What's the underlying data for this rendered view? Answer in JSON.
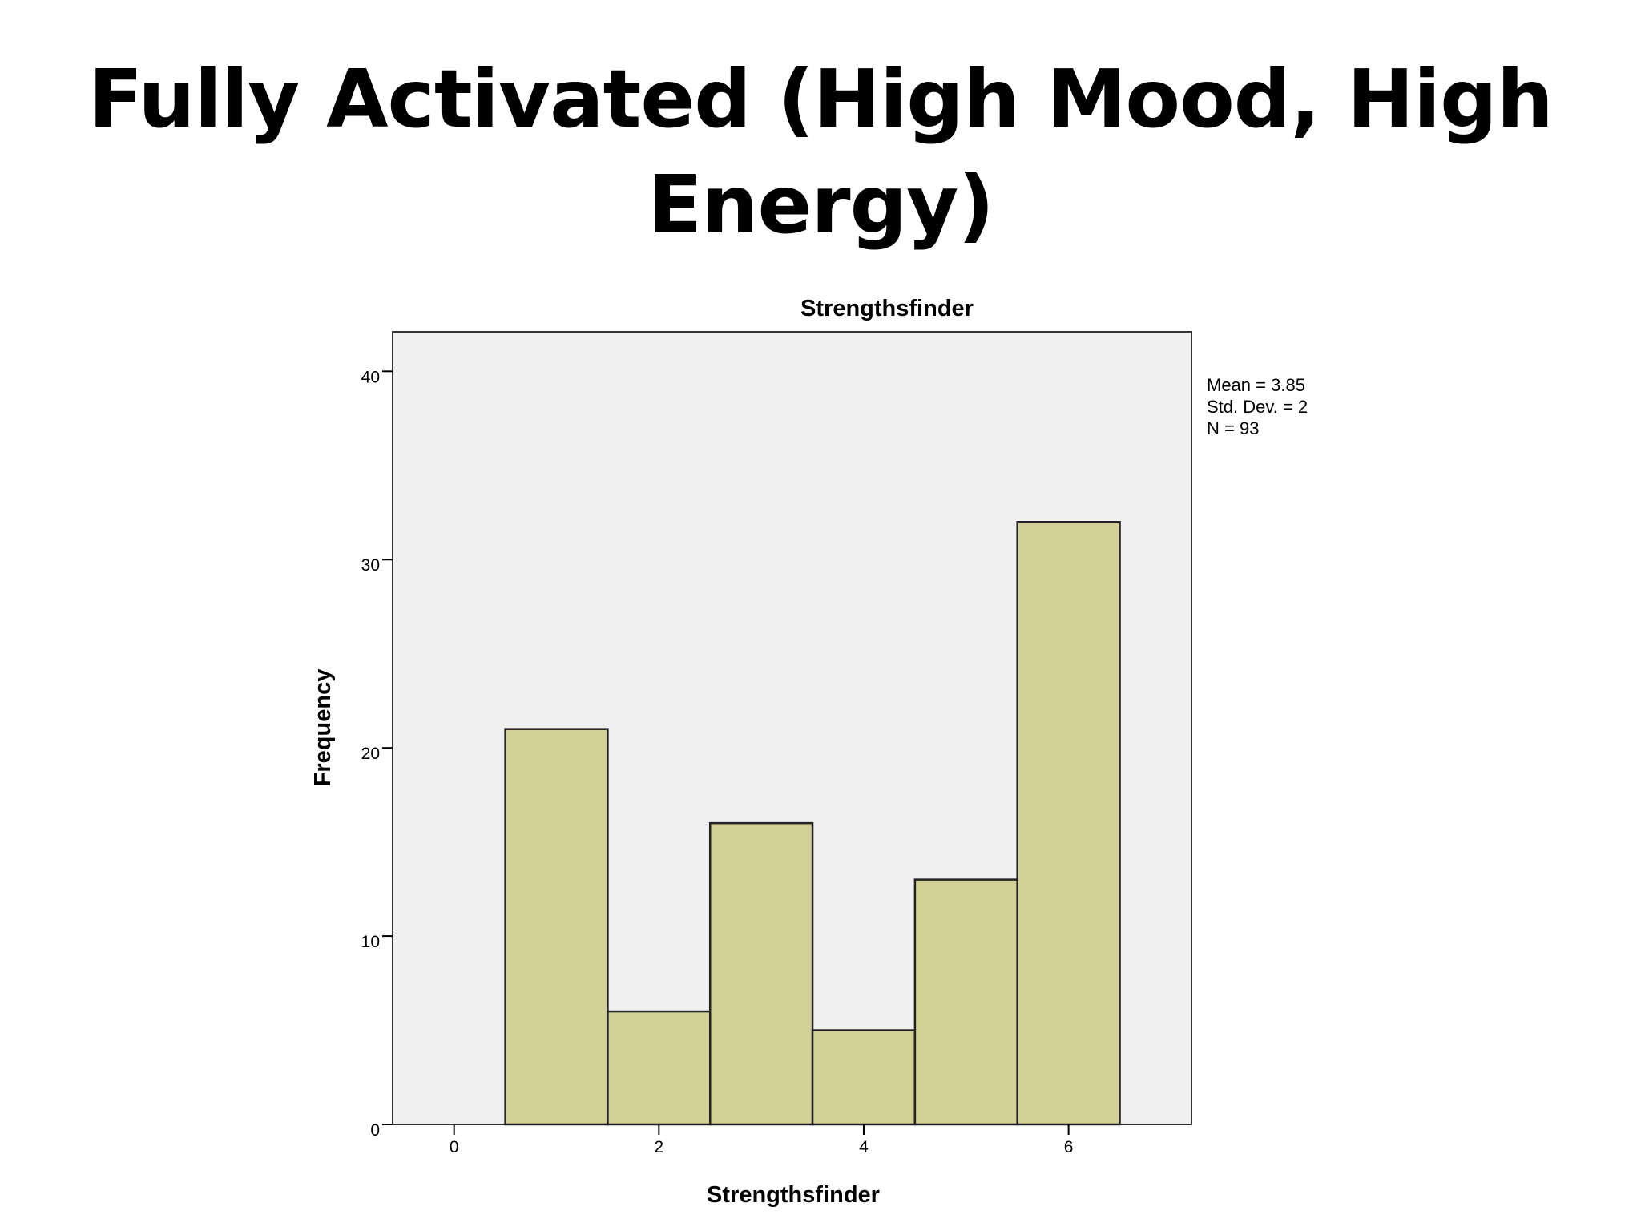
{
  "slide": {
    "title": "Fully Activated (High Mood, High Energy)"
  },
  "chart_data": {
    "type": "bar",
    "title": "Strengthsfinder",
    "xlabel": "Strengthsfinder",
    "ylabel": "Frequency",
    "bins": [
      {
        "x": 1,
        "value": 21
      },
      {
        "x": 2,
        "value": 6
      },
      {
        "x": 3,
        "value": 16
      },
      {
        "x": 4,
        "value": 5
      },
      {
        "x": 5,
        "value": 13
      },
      {
        "x": 6,
        "value": 32
      }
    ],
    "x_ticks": [
      0,
      2,
      4,
      6
    ],
    "y_ticks": [
      0,
      10,
      20,
      30,
      40
    ],
    "xlim": [
      -0.6,
      7.2
    ],
    "ylim": [
      0,
      42.1
    ],
    "stats": [
      "Mean = 3.85",
      "Std. Dev. = 2",
      "N = 93"
    ],
    "grid": false,
    "colors": {
      "bar_fill": "#d3d097",
      "plot_background": "#f0f0f0",
      "bar_stroke": "#222222"
    }
  }
}
